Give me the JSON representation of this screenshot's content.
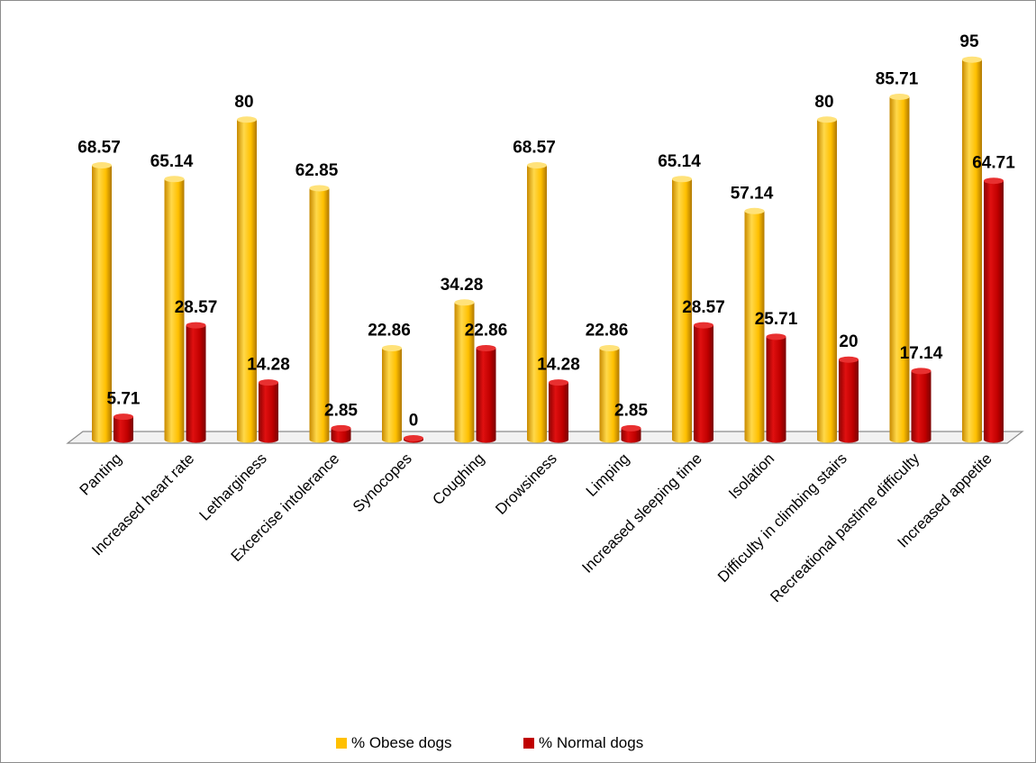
{
  "chart_data": {
    "type": "bar",
    "title": "",
    "xlabel": "",
    "ylabel": "",
    "ylim": [
      0,
      100
    ],
    "grid": false,
    "legend_position": "bottom",
    "categories": [
      "Panting",
      "Increased heart rate",
      "Letharginess",
      "Excercise intolerance",
      "Synocopes",
      "Coughing",
      "Drowsiness",
      "Limping",
      "Increased sleeping time",
      "Isolation",
      "Difficulty in climbing stairs",
      "Recreational pastime difficulty",
      "Increased appetite"
    ],
    "series": [
      {
        "name": "% Obese dogs",
        "color": "#FFC000",
        "values": [
          68.57,
          65.14,
          80,
          62.85,
          22.86,
          34.28,
          68.57,
          22.86,
          65.14,
          57.14,
          80,
          85.71,
          95
        ],
        "labels": [
          "68.57",
          "65.14",
          "80",
          "62.85",
          "22.86",
          "34.28",
          "68.57",
          "22.86",
          "65.14",
          "57.14",
          "80",
          "85.71",
          "95"
        ]
      },
      {
        "name": "% Normal dogs",
        "color": "#C00000",
        "values": [
          5.71,
          28.57,
          14.28,
          2.85,
          0,
          22.86,
          14.28,
          2.85,
          28.57,
          25.71,
          20,
          17.14,
          64.71
        ],
        "labels": [
          "5.71",
          "28.57",
          "14.28",
          "2.85",
          "0",
          "22.86",
          "14.28",
          "2.85",
          "28.57",
          "25.71",
          "20",
          "17.14",
          "64.71"
        ]
      }
    ]
  }
}
